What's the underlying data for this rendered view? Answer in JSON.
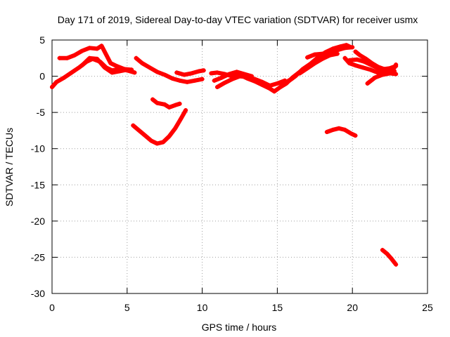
{
  "chart_data": {
    "type": "scatter",
    "title": "Day 171 of 2019, Sidereal Day-to-day VTEC variation (SDTVAR) for receiver usmx",
    "xlabel": "GPS time / hours",
    "ylabel": "SDTVAR / TECUs",
    "xlim": [
      0,
      25
    ],
    "ylim": [
      -30,
      5
    ],
    "x_ticks": [
      0,
      5,
      10,
      15,
      20,
      25
    ],
    "x_tick_labels": [
      "0",
      "5",
      "10",
      "15",
      "20",
      "25"
    ],
    "y_ticks": [
      5,
      0,
      -5,
      -10,
      -15,
      -20,
      -25,
      -30
    ],
    "y_tick_labels": [
      "5",
      "0",
      "-5",
      "-10",
      "-15",
      "-20",
      "-25",
      "-30"
    ],
    "grid": true,
    "legend": "none",
    "marker_color": "#ff0000",
    "series": [
      {
        "name": "arc-1",
        "points": [
          [
            0.0,
            -1.5
          ],
          [
            0.3,
            -0.8
          ],
          [
            0.8,
            -0.2
          ],
          [
            1.3,
            0.5
          ],
          [
            1.8,
            1.2
          ],
          [
            2.3,
            2.0
          ],
          [
            2.7,
            2.4
          ],
          [
            3.2,
            2.0
          ],
          [
            3.6,
            1.2
          ],
          [
            4.0,
            0.8
          ],
          [
            4.5,
            1.0
          ],
          [
            5.0,
            0.8
          ],
          [
            5.5,
            0.5
          ]
        ]
      },
      {
        "name": "arc-2",
        "points": [
          [
            0.5,
            2.5
          ],
          [
            1.0,
            2.5
          ],
          [
            1.5,
            2.9
          ],
          [
            2.0,
            3.5
          ],
          [
            2.5,
            3.9
          ],
          [
            3.0,
            3.8
          ],
          [
            3.3,
            4.2
          ],
          [
            3.6,
            3.0
          ],
          [
            3.9,
            1.8
          ],
          [
            4.3,
            1.4
          ],
          [
            4.8,
            1.0
          ],
          [
            5.3,
            0.9
          ]
        ]
      },
      {
        "name": "arc-3",
        "points": [
          [
            2.0,
            1.5
          ],
          [
            2.5,
            2.5
          ],
          [
            3.0,
            2.4
          ],
          [
            3.5,
            1.2
          ],
          [
            4.0,
            0.5
          ],
          [
            4.5,
            0.7
          ],
          [
            5.0,
            0.9
          ]
        ]
      },
      {
        "name": "arc-4",
        "points": [
          [
            5.6,
            2.5
          ],
          [
            6.0,
            1.8
          ],
          [
            6.5,
            1.2
          ],
          [
            7.0,
            0.6
          ],
          [
            7.5,
            0.2
          ],
          [
            8.0,
            -0.3
          ],
          [
            8.5,
            -0.6
          ],
          [
            9.0,
            -0.8
          ],
          [
            9.5,
            -0.6
          ],
          [
            10.0,
            -0.4
          ]
        ]
      },
      {
        "name": "arc-5",
        "points": [
          [
            8.3,
            0.5
          ],
          [
            8.8,
            0.2
          ],
          [
            9.3,
            0.4
          ],
          [
            9.8,
            0.7
          ],
          [
            10.1,
            0.8
          ]
        ]
      },
      {
        "name": "arc-6",
        "points": [
          [
            6.7,
            -3.2
          ],
          [
            7.0,
            -3.7
          ],
          [
            7.5,
            -3.9
          ],
          [
            7.8,
            -4.3
          ],
          [
            8.2,
            -4.0
          ],
          [
            8.5,
            -3.8
          ]
        ]
      },
      {
        "name": "arc-7",
        "points": [
          [
            5.4,
            -6.8
          ],
          [
            5.8,
            -7.5
          ],
          [
            6.2,
            -8.2
          ],
          [
            6.6,
            -8.9
          ],
          [
            7.0,
            -9.3
          ],
          [
            7.4,
            -9.1
          ],
          [
            7.8,
            -8.3
          ],
          [
            8.2,
            -7.2
          ],
          [
            8.6,
            -5.8
          ],
          [
            8.9,
            -4.7
          ]
        ]
      },
      {
        "name": "arc-8",
        "points": [
          [
            10.6,
            0.4
          ],
          [
            11.0,
            0.5
          ],
          [
            11.5,
            0.3
          ],
          [
            12.0,
            0.0
          ],
          [
            12.5,
            0.2
          ],
          [
            13.0,
            -0.3
          ],
          [
            13.5,
            -0.7
          ],
          [
            14.0,
            -1.2
          ],
          [
            14.5,
            -1.7
          ],
          [
            14.8,
            -2.1
          ],
          [
            15.2,
            -1.5
          ],
          [
            15.6,
            -0.8
          ],
          [
            16.0,
            -0.3
          ]
        ]
      },
      {
        "name": "arc-9",
        "points": [
          [
            11.0,
            -1.5
          ],
          [
            11.5,
            -0.9
          ],
          [
            12.0,
            -0.4
          ],
          [
            12.5,
            0.0
          ],
          [
            13.0,
            -0.1
          ],
          [
            13.5,
            -0.4
          ],
          [
            14.0,
            -0.8
          ],
          [
            14.5,
            -1.3
          ],
          [
            15.0,
            -1.0
          ],
          [
            15.5,
            -0.6
          ]
        ]
      },
      {
        "name": "arc-10",
        "points": [
          [
            10.8,
            -0.6
          ],
          [
            11.3,
            -0.2
          ],
          [
            11.8,
            0.3
          ],
          [
            12.3,
            0.6
          ],
          [
            12.8,
            0.3
          ],
          [
            13.3,
            0.0
          ]
        ]
      },
      {
        "name": "arc-11",
        "points": [
          [
            15.2,
            -1.5
          ],
          [
            15.6,
            -1.0
          ],
          [
            16.0,
            -0.2
          ],
          [
            16.5,
            0.6
          ],
          [
            17.0,
            1.3
          ],
          [
            17.5,
            2.0
          ],
          [
            18.0,
            2.7
          ],
          [
            18.5,
            3.2
          ],
          [
            19.0,
            3.6
          ],
          [
            19.5,
            3.9
          ],
          [
            20.0,
            4.0
          ]
        ]
      },
      {
        "name": "arc-12",
        "points": [
          [
            15.8,
            -0.6
          ],
          [
            16.2,
            0.0
          ],
          [
            16.7,
            1.0
          ],
          [
            17.2,
            1.7
          ],
          [
            17.7,
            2.6
          ],
          [
            18.2,
            3.3
          ],
          [
            18.7,
            3.8
          ],
          [
            19.2,
            4.1
          ],
          [
            19.6,
            4.3
          ],
          [
            19.9,
            4.0
          ]
        ]
      },
      {
        "name": "arc-13",
        "points": [
          [
            16.5,
            0.4
          ],
          [
            17.0,
            1.1
          ],
          [
            17.5,
            1.8
          ],
          [
            18.0,
            2.4
          ],
          [
            18.5,
            2.9
          ],
          [
            19.0,
            3.1
          ]
        ]
      },
      {
        "name": "arc-14",
        "points": [
          [
            17.0,
            2.6
          ],
          [
            17.5,
            3.0
          ],
          [
            18.0,
            3.1
          ]
        ]
      },
      {
        "name": "arc-15",
        "points": [
          [
            19.5,
            2.5
          ],
          [
            19.8,
            1.8
          ],
          [
            20.2,
            1.5
          ],
          [
            20.7,
            1.2
          ],
          [
            21.2,
            0.9
          ],
          [
            21.7,
            0.5
          ],
          [
            22.2,
            0.4
          ],
          [
            22.8,
            0.7
          ]
        ]
      },
      {
        "name": "arc-16",
        "points": [
          [
            19.8,
            2.2
          ],
          [
            20.3,
            2.3
          ],
          [
            20.8,
            2.0
          ],
          [
            21.3,
            1.5
          ],
          [
            21.8,
            1.0
          ],
          [
            22.3,
            0.9
          ],
          [
            22.8,
            1.2
          ],
          [
            22.9,
            1.6
          ]
        ]
      },
      {
        "name": "arc-17",
        "points": [
          [
            20.2,
            3.4
          ],
          [
            20.5,
            2.9
          ],
          [
            20.9,
            2.4
          ],
          [
            21.3,
            1.8
          ],
          [
            21.7,
            1.3
          ],
          [
            22.1,
            1.0
          ],
          [
            22.5,
            1.1
          ],
          [
            22.9,
            1.4
          ]
        ]
      },
      {
        "name": "arc-18",
        "points": [
          [
            21.0,
            -1.0
          ],
          [
            21.5,
            -0.2
          ],
          [
            22.0,
            0.2
          ],
          [
            22.5,
            0.4
          ],
          [
            22.9,
            0.3
          ]
        ]
      },
      {
        "name": "arc-19",
        "points": [
          [
            18.3,
            -7.7
          ],
          [
            18.7,
            -7.4
          ],
          [
            19.1,
            -7.2
          ],
          [
            19.5,
            -7.4
          ],
          [
            19.9,
            -7.9
          ],
          [
            20.2,
            -8.2
          ]
        ]
      },
      {
        "name": "arc-20",
        "points": [
          [
            22.0,
            -24.0
          ],
          [
            22.3,
            -24.5
          ],
          [
            22.6,
            -25.2
          ],
          [
            22.9,
            -26.0
          ]
        ]
      }
    ]
  }
}
